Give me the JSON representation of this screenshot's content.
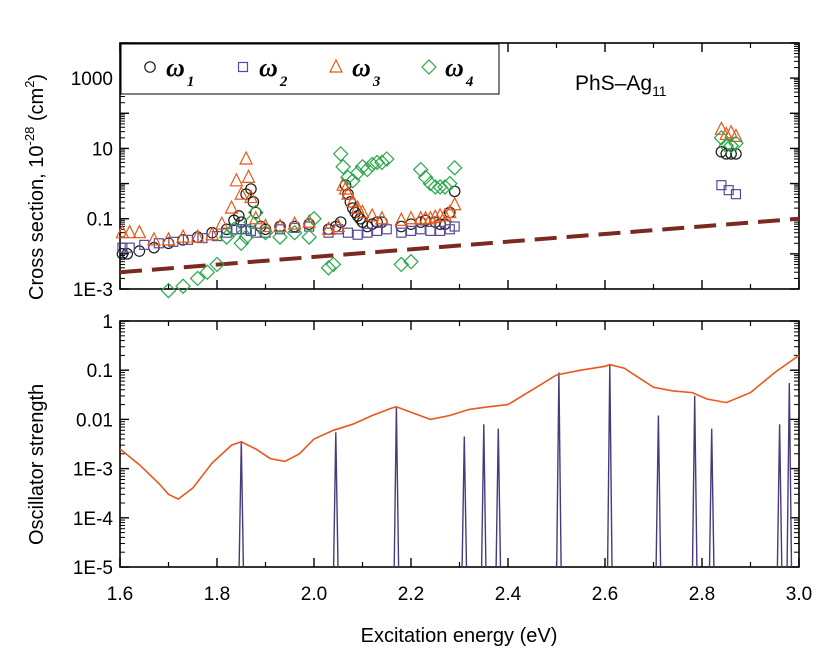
{
  "chart_data": [
    {
      "type": "scatter",
      "panel": "top",
      "annotation": "PhS–Ag",
      "annotation_sub": "11",
      "ylabel": "Cross section, 10",
      "ylabel_sup": "-28",
      "ylabel_unit": " (cm",
      "ylabel_unit_sup": "2",
      "ylabel_end": ")",
      "xlim": [
        1.6,
        3.0
      ],
      "ylim_exp": [
        -3,
        4
      ],
      "y_scale": "log",
      "yticks": [
        {
          "v": 0.001,
          "label": "1E-3"
        },
        {
          "v": 0.1,
          "label": "0.1"
        },
        {
          "v": 10,
          "label": "10"
        },
        {
          "v": 1000,
          "label": "1000"
        }
      ],
      "legend_position": "top-left",
      "series": [
        {
          "name": "ω",
          "sub": "1",
          "marker": "circle",
          "color": "#1a1a1a",
          "x": [
            1.605,
            1.615,
            1.64,
            1.67,
            1.7,
            1.73,
            1.76,
            1.79,
            1.82,
            1.835,
            1.845,
            1.85,
            1.86,
            1.87,
            1.875,
            1.88,
            1.89,
            1.9,
            1.93,
            1.96,
            1.99,
            2.03,
            2.045,
            2.055,
            2.065,
            2.07,
            2.075,
            2.08,
            2.085,
            2.09,
            2.095,
            2.1,
            2.11,
            2.12,
            2.13,
            2.14,
            2.18,
            2.2,
            2.22,
            2.23,
            2.25,
            2.26,
            2.27,
            2.28,
            2.29,
            2.84,
            2.85,
            2.86,
            2.87
          ],
          "y": [
            0.01,
            0.01,
            0.012,
            0.015,
            0.02,
            0.025,
            0.03,
            0.04,
            0.05,
            0.09,
            0.12,
            0.08,
            0.5,
            0.7,
            0.3,
            0.15,
            0.06,
            0.05,
            0.06,
            0.06,
            0.07,
            0.05,
            0.06,
            0.08,
            0.9,
            0.5,
            0.3,
            0.2,
            0.15,
            0.12,
            0.1,
            0.08,
            0.06,
            0.07,
            0.08,
            0.08,
            0.06,
            0.07,
            0.08,
            0.09,
            0.08,
            0.07,
            0.07,
            0.15,
            0.6,
            8,
            7,
            7,
            7
          ]
        },
        {
          "name": "ω",
          "sub": "2",
          "marker": "square",
          "color": "#5a4a9a",
          "x": [
            1.605,
            1.62,
            1.65,
            1.68,
            1.71,
            1.74,
            1.77,
            1.8,
            1.82,
            1.84,
            1.85,
            1.86,
            1.87,
            1.88,
            1.9,
            1.93,
            1.96,
            1.99,
            2.03,
            2.05,
            2.07,
            2.09,
            2.11,
            2.13,
            2.15,
            2.18,
            2.2,
            2.22,
            2.24,
            2.26,
            2.28,
            2.29,
            2.84,
            2.855,
            2.87
          ],
          "y": [
            0.015,
            0.015,
            0.018,
            0.02,
            0.022,
            0.025,
            0.028,
            0.032,
            0.04,
            0.05,
            0.05,
            0.05,
            0.045,
            0.04,
            0.04,
            0.05,
            0.055,
            0.06,
            0.04,
            0.05,
            0.04,
            0.035,
            0.04,
            0.045,
            0.05,
            0.04,
            0.045,
            0.05,
            0.045,
            0.045,
            0.05,
            0.06,
            0.9,
            0.65,
            0.5
          ]
        },
        {
          "name": "ω",
          "sub": "3",
          "marker": "triangle",
          "color": "#e8581a",
          "x": [
            1.605,
            1.62,
            1.64,
            1.67,
            1.7,
            1.73,
            1.76,
            1.79,
            1.81,
            1.83,
            1.84,
            1.85,
            1.86,
            1.865,
            1.87,
            1.88,
            1.9,
            1.93,
            1.96,
            1.99,
            2.03,
            2.05,
            2.06,
            2.065,
            2.07,
            2.08,
            2.09,
            2.1,
            2.12,
            2.14,
            2.18,
            2.2,
            2.22,
            2.23,
            2.24,
            2.25,
            2.26,
            2.27,
            2.28,
            2.29,
            2.84,
            2.85,
            2.86,
            2.87
          ],
          "y": [
            0.04,
            0.04,
            0.04,
            0.025,
            0.025,
            0.03,
            0.03,
            0.035,
            0.07,
            0.2,
            1.2,
            0.5,
            5,
            1.5,
            0.4,
            0.1,
            0.06,
            0.06,
            0.07,
            0.08,
            0.05,
            0.06,
            0.9,
            0.7,
            0.5,
            0.3,
            0.2,
            0.15,
            0.12,
            0.1,
            0.09,
            0.1,
            0.1,
            0.1,
            0.1,
            0.11,
            0.12,
            0.12,
            0.15,
            0.25,
            35,
            25,
            28,
            22
          ]
        },
        {
          "name": "ω",
          "sub": "4",
          "marker": "diamond",
          "color": "#2aa84a",
          "x": [
            1.62,
            1.65,
            1.67,
            1.7,
            1.73,
            1.76,
            1.78,
            1.8,
            1.82,
            1.835,
            1.85,
            1.86,
            1.87,
            1.88,
            1.9,
            1.93,
            1.96,
            1.99,
            2.0,
            2.03,
            2.04,
            2.055,
            2.06,
            2.07,
            2.08,
            2.09,
            2.1,
            2.11,
            2.12,
            2.13,
            2.14,
            2.15,
            2.18,
            2.2,
            2.22,
            2.23,
            2.24,
            2.25,
            2.26,
            2.27,
            2.28,
            2.29,
            2.84,
            2.85,
            2.86,
            2.87
          ],
          "y": [
            0.0006,
            0.0006,
            0.0008,
            0.0009,
            0.0012,
            0.002,
            0.003,
            0.005,
            0.03,
            0.05,
            0.02,
            0.03,
            0.08,
            0.15,
            0.04,
            0.03,
            0.04,
            0.03,
            0.1,
            0.004,
            0.005,
            7,
            3,
            1.5,
            1.2,
            2,
            3,
            2.5,
            3.5,
            4,
            4,
            5,
            0.005,
            0.006,
            2.5,
            1.5,
            1,
            0.8,
            0.8,
            0.8,
            1,
            2.8,
            20,
            12,
            12,
            14
          ]
        }
      ],
      "dashed_line": {
        "color": "#7a2a20",
        "x": [
          1.6,
          3.0
        ],
        "y": [
          0.003,
          0.1
        ]
      }
    },
    {
      "type": "line",
      "panel": "bottom",
      "xlabel": "Excitation energy (eV)",
      "ylabel": "Oscillator strength",
      "xlim": [
        1.6,
        3.0
      ],
      "xticks": [
        1.6,
        1.8,
        2.0,
        2.2,
        2.4,
        2.6,
        2.8,
        3.0
      ],
      "xtick_labels": [
        "1.6",
        "1.8",
        "2.0",
        "2.2",
        "2.4",
        "2.6",
        "2.8",
        "3.0"
      ],
      "ylim_exp": [
        -5,
        0
      ],
      "y_scale": "log",
      "yticks": [
        {
          "v": 1e-05,
          "label": "1E-5"
        },
        {
          "v": 0.0001,
          "label": "1E-4"
        },
        {
          "v": 0.001,
          "label": "1E-3"
        },
        {
          "v": 0.01,
          "label": "0.01"
        },
        {
          "v": 0.1,
          "label": "0.1"
        },
        {
          "v": 1,
          "label": "1"
        }
      ],
      "envelope": {
        "color": "#e8581a",
        "x": [
          1.6,
          1.64,
          1.68,
          1.7,
          1.72,
          1.75,
          1.79,
          1.83,
          1.85,
          1.88,
          1.91,
          1.94,
          1.97,
          2.0,
          2.04,
          2.08,
          2.12,
          2.16,
          2.17,
          2.2,
          2.24,
          2.28,
          2.32,
          2.36,
          2.4,
          2.45,
          2.5,
          2.55,
          2.6,
          2.61,
          2.64,
          2.67,
          2.7,
          2.74,
          2.78,
          2.81,
          2.85,
          2.9,
          2.95,
          3.0
        ],
        "y": [
          0.0025,
          0.0012,
          0.0005,
          0.0003,
          0.00024,
          0.0004,
          0.0013,
          0.003,
          0.0035,
          0.0025,
          0.0016,
          0.0014,
          0.002,
          0.004,
          0.006,
          0.008,
          0.012,
          0.017,
          0.018,
          0.014,
          0.01,
          0.012,
          0.016,
          0.018,
          0.02,
          0.04,
          0.08,
          0.1,
          0.12,
          0.13,
          0.11,
          0.07,
          0.045,
          0.038,
          0.035,
          0.026,
          0.022,
          0.035,
          0.09,
          0.2
        ]
      },
      "sticks": {
        "color": "#4a3a7a",
        "x": [
          1.85,
          2.045,
          2.17,
          2.31,
          2.35,
          2.38,
          2.505,
          2.61,
          2.71,
          2.785,
          2.82,
          2.96,
          2.98
        ],
        "y": [
          0.0035,
          0.0055,
          0.018,
          0.0045,
          0.008,
          0.0065,
          0.09,
          0.13,
          0.012,
          0.03,
          0.0065,
          0.008,
          0.055
        ]
      }
    }
  ]
}
